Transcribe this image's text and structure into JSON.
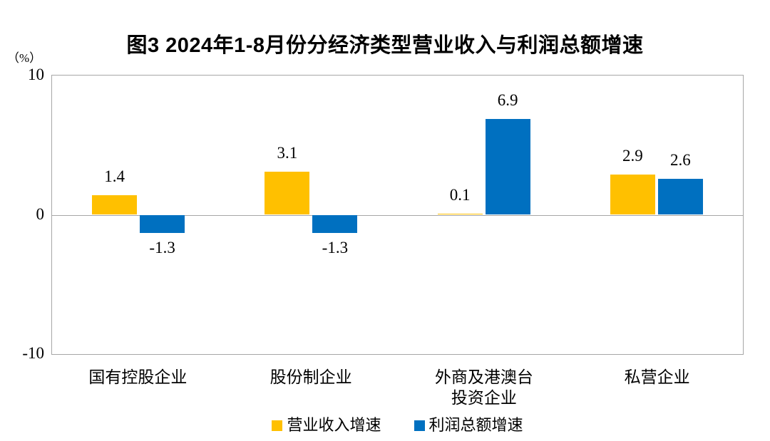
{
  "title": "图3 2024年1-8月份分经济类型营业收入与利润总额增速",
  "unit_label": "（%）",
  "colors": {
    "revenue_series": "#FFC000",
    "profit_series": "#0070C0",
    "axis_line": "#A6A6A6",
    "text": "#000000"
  },
  "chart_data": {
    "type": "bar",
    "title": "图3 2024年1-8月份分经济类型营业收入与利润总额增速",
    "ylabel": "（%）",
    "categories": [
      "国有控股企业",
      "股份制企业",
      "外商及港澳台\n投资企业",
      "私营企业"
    ],
    "series": [
      {
        "name": "营业收入增速",
        "color": "#FFC000",
        "values": [
          1.4,
          3.1,
          0.1,
          2.9
        ]
      },
      {
        "name": "利润总额增速",
        "color": "#0070C0",
        "values": [
          -1.3,
          -1.3,
          6.9,
          2.6
        ]
      }
    ],
    "ylim": [
      -10,
      10
    ],
    "yticks": [
      10,
      0,
      -10
    ],
    "grid": false,
    "legend_position": "bottom",
    "value_labels_shown": true
  }
}
